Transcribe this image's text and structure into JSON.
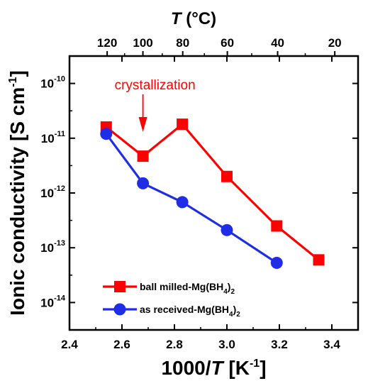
{
  "chart_data": {
    "type": "line",
    "xlabel": {
      "prefix": "1000/",
      "italic": "T",
      "suffix": " [K",
      "sup": "-1",
      "end": "]"
    },
    "ylabel": {
      "main": "Ionic conductivity [S cm",
      "sup": "-1",
      "end": "]"
    },
    "top_xlabel": {
      "italic": "T",
      "rest": " (°C)"
    },
    "xlim": [
      2.4,
      3.5
    ],
    "ylim_log10": [
      -14.5,
      -9.5
    ],
    "yscale": "log",
    "x_ticks": [
      2.4,
      2.6,
      2.8,
      3.0,
      3.2,
      3.4
    ],
    "x_tick_labels": [
      "2.4",
      "2.6",
      "2.8",
      "3.0",
      "3.2",
      "3.4"
    ],
    "y_tick_exponents": [
      -14,
      -13,
      -12,
      -11,
      -10
    ],
    "top_ticks_celsius": [
      120,
      100,
      80,
      60,
      40,
      20
    ],
    "top_tick_labels": [
      "120",
      "100",
      "80",
      "60",
      "40",
      "20"
    ],
    "series": [
      {
        "name": "ball milled-Mg(BH4)2",
        "legend": {
          "pre": "ball milled-Mg(BH",
          "sub": "4",
          "post": ")",
          "sub2": "2"
        },
        "color": "#ff0000",
        "marker": "square",
        "x": [
          2.54,
          2.68,
          2.83,
          3.0,
          3.19,
          3.35
        ],
        "y": [
          1.6e-11,
          4.7e-12,
          1.8e-11,
          2e-12,
          2.5e-13,
          6e-14
        ]
      },
      {
        "name": "as received-Mg(BH4)2",
        "legend": {
          "pre": "as received-Mg(BH",
          "sub": "4",
          "post": ")",
          "sub2": "2"
        },
        "color": "#1f2ee6",
        "marker": "circle",
        "x": [
          2.54,
          2.68,
          2.83,
          3.0,
          3.19
        ],
        "y": [
          1.2e-11,
          1.5e-12,
          6.8e-13,
          2.1e-13,
          5.3e-14
        ]
      }
    ],
    "annotation": {
      "text": "crystallization",
      "color": "#ff0000",
      "arrow_x": 2.68
    },
    "grid": false,
    "legend_position": "bottom-left"
  }
}
